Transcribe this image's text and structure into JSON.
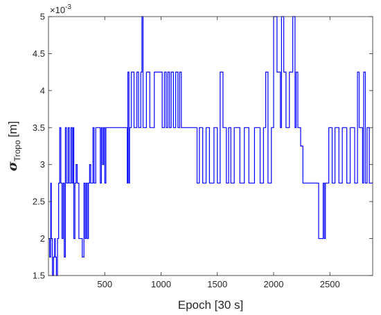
{
  "chart_data": {
    "type": "line",
    "title": "",
    "xlabel": "Epoch [30 s]",
    "ylabel_symbol": "σ",
    "ylabel_subscript": "Tropo",
    "ylabel_unit": "[m]",
    "y_multiplier_base": "×10",
    "y_multiplier_exponent": "-3",
    "xlim": [
      0,
      2880
    ],
    "ylim": [
      1.5,
      5
    ],
    "xticks": [
      500,
      1000,
      1500,
      2000,
      2500
    ],
    "xtick_labels": [
      "500",
      "1000",
      "1500",
      "2000",
      "2500"
    ],
    "yticks": [
      1.5,
      2,
      2.5,
      3,
      3.5,
      4,
      4.5,
      5
    ],
    "ytick_labels": [
      "1.5",
      "2",
      "2.5",
      "3",
      "3.5",
      "4",
      "4.5",
      "5"
    ],
    "grid": false,
    "series": [
      {
        "color": "#0000ff",
        "x": [
          0,
          10,
          20,
          25,
          35,
          45,
          55,
          60,
          70,
          80,
          90,
          100,
          110,
          120,
          130,
          140,
          150,
          160,
          175,
          185,
          200,
          210,
          220,
          225,
          235,
          245,
          255,
          270,
          300,
          315,
          325,
          335,
          345,
          355,
          365,
          375,
          385,
          395,
          405,
          420,
          440,
          460,
          470,
          480,
          490,
          500,
          510,
          520,
          530,
          600,
          650,
          700,
          705,
          715,
          720,
          735,
          760,
          785,
          800,
          820,
          830,
          840,
          850,
          870,
          900,
          940,
          990,
          1010,
          1030,
          1045,
          1060,
          1075,
          1090,
          1110,
          1130,
          1150,
          1165,
          1180,
          1230,
          1320,
          1340,
          1370,
          1400,
          1430,
          1470,
          1500,
          1525,
          1550,
          1580,
          1600,
          1620,
          1650,
          1700,
          1740,
          1780,
          1830,
          1880,
          1910,
          1930,
          1950,
          1980,
          2000,
          2030,
          2060,
          2070,
          2090,
          2110,
          2140,
          2170,
          2190,
          2200,
          2215,
          2240,
          2260,
          2280,
          2330,
          2400,
          2440,
          2450,
          2460,
          2475,
          2490,
          2520,
          2545,
          2560,
          2580,
          2610,
          2625,
          2650,
          2680,
          2700,
          2720,
          2745,
          2760,
          2790,
          2800,
          2815,
          2830,
          2850,
          2880
        ],
        "y": [
          2.0,
          1.75,
          2.75,
          2.0,
          1.5,
          1.75,
          2.0,
          1.75,
          1.5,
          2.0,
          2.75,
          3.5,
          2.75,
          2.0,
          2.75,
          1.75,
          3.5,
          2.75,
          3.5,
          2.75,
          3.5,
          2.75,
          3.5,
          2.0,
          2.75,
          3.0,
          2.75,
          2.0,
          1.75,
          2.75,
          2.0,
          2.75,
          2.0,
          2.75,
          3.0,
          2.75,
          2.75,
          3.5,
          2.75,
          3.5,
          3.5,
          2.75,
          3.5,
          3.0,
          3.5,
          2.75,
          3.5,
          3.5,
          3.5,
          3.5,
          3.5,
          2.75,
          4.25,
          2.75,
          3.5,
          4.25,
          3.5,
          4.25,
          3.5,
          4.25,
          5.0,
          3.5,
          3.5,
          4.25,
          3.5,
          4.25,
          4.25,
          3.5,
          4.25,
          3.5,
          4.25,
          3.5,
          4.25,
          3.5,
          4.25,
          3.5,
          4.25,
          3.5,
          3.5,
          2.75,
          3.5,
          2.75,
          3.5,
          2.75,
          3.5,
          2.75,
          4.25,
          3.5,
          2.75,
          3.5,
          2.75,
          3.5,
          2.75,
          3.5,
          2.75,
          3.5,
          2.75,
          3.5,
          4.25,
          2.75,
          3.5,
          5.0,
          4.25,
          3.5,
          5.0,
          4.25,
          3.5,
          4.25,
          5.0,
          3.5,
          4.25,
          3.5,
          3.25,
          2.75,
          2.75,
          2.75,
          2.0,
          2.75,
          2.0,
          2.75,
          2.75,
          3.5,
          2.75,
          3.5,
          3.5,
          2.75,
          3.5,
          3.5,
          2.75,
          3.5,
          3.5,
          2.75,
          4.25,
          3.5,
          2.75,
          4.25,
          2.75,
          3.5,
          2.75,
          2.75
        ]
      }
    ]
  }
}
